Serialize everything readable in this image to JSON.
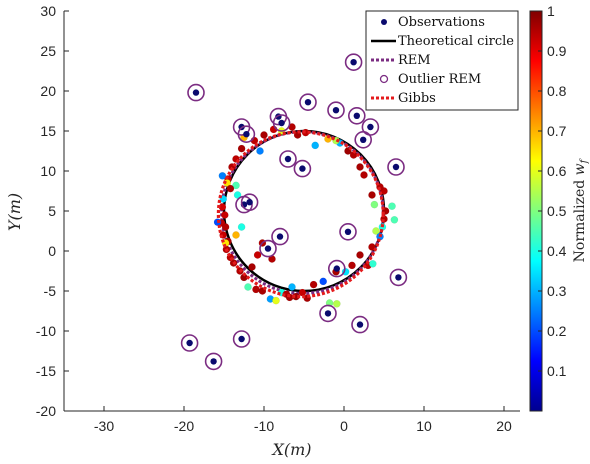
{
  "chart_data": {
    "type": "scatter",
    "title": "",
    "xlabel": "X(m)",
    "ylabel": "Y(m)",
    "xlim": [
      -35,
      22
    ],
    "ylim": [
      -20,
      30
    ],
    "xticks": [
      -30,
      -20,
      -10,
      0,
      10,
      20
    ],
    "yticks": [
      -20,
      -15,
      -10,
      -5,
      0,
      5,
      10,
      15,
      20,
      25,
      30
    ],
    "grid": false,
    "legend_position": "top-right",
    "legend": [
      "Observations",
      "Theoretical circle",
      "REM",
      "Outlier REM",
      "Gibbs"
    ],
    "colorbar": {
      "label": "Normalized w_f",
      "label_text": "Normalized ",
      "label_var": "w",
      "label_sub": "f",
      "range": [
        0,
        1
      ],
      "ticks": [
        "0.1",
        "0.2",
        "0.3",
        "0.4",
        "0.5",
        "0.6",
        "0.7",
        "0.8",
        "0.9",
        "1"
      ],
      "colormap": "jet"
    },
    "theoretical_circle": {
      "center": [
        -5,
        5
      ],
      "radius": 10,
      "color": "#000000"
    },
    "rem_circle": {
      "center": [
        -5.2,
        4.8
      ],
      "radius": 10.1,
      "color": "#7b2c82"
    },
    "gibbs_circle": {
      "center": [
        -5.4,
        4.6
      ],
      "radius": 10.3,
      "color": "#e41a1c"
    },
    "observations_on_circle": [
      {
        "x": -15.1,
        "y": 6.5,
        "w": 0.34
      },
      {
        "x": -15.2,
        "y": 5.5,
        "w": 0.92
      },
      {
        "x": -14.9,
        "y": 4.5,
        "w": 0.93
      },
      {
        "x": -15.3,
        "y": 3.5,
        "w": 0.94
      },
      {
        "x": -14.8,
        "y": 3.0,
        "w": 0.95
      },
      {
        "x": -15.1,
        "y": 2.0,
        "w": 0.93
      },
      {
        "x": -14.5,
        "y": 1.2,
        "w": 0.96
      },
      {
        "x": -14.7,
        "y": 0.2,
        "w": 0.95
      },
      {
        "x": -14.2,
        "y": -0.8,
        "w": 0.94
      },
      {
        "x": -13.8,
        "y": -1.5,
        "w": 0.96
      },
      {
        "x": -13.0,
        "y": -2.5,
        "w": 0.95
      },
      {
        "x": -12.5,
        "y": -3.3,
        "w": 0.97
      },
      {
        "x": -12.0,
        "y": -4.5,
        "w": 0.45
      },
      {
        "x": -11.0,
        "y": -4.8,
        "w": 0.95
      },
      {
        "x": -10.2,
        "y": -5.0,
        "w": 0.96
      },
      {
        "x": -9.2,
        "y": -6.0,
        "w": 0.28
      },
      {
        "x": -8.5,
        "y": -6.2,
        "w": 0.6
      },
      {
        "x": -7.8,
        "y": -5.2,
        "w": 0.4
      },
      {
        "x": -7.2,
        "y": -5.4,
        "w": 0.95
      },
      {
        "x": -6.8,
        "y": -5.8,
        "w": 0.96
      },
      {
        "x": -6.0,
        "y": -5.7,
        "w": 0.97
      },
      {
        "x": -5.2,
        "y": -5.2,
        "w": 0.93
      },
      {
        "x": -4.6,
        "y": -5.9,
        "w": 0.96
      },
      {
        "x": -3.8,
        "y": -4.2,
        "w": 0.95
      },
      {
        "x": -2.6,
        "y": -3.8,
        "w": 0.2
      },
      {
        "x": -1.8,
        "y": -6.5,
        "w": 0.5
      },
      {
        "x": -0.9,
        "y": -6.6,
        "w": 0.55
      },
      {
        "x": -1.0,
        "y": -2.6,
        "w": 0.96
      },
      {
        "x": 0.2,
        "y": -2.6,
        "w": 0.35
      },
      {
        "x": 1.0,
        "y": -1.8,
        "w": 0.95
      },
      {
        "x": 2.0,
        "y": -0.5,
        "w": 0.96
      },
      {
        "x": 3.0,
        "y": -1.8,
        "w": 0.94
      },
      {
        "x": 3.6,
        "y": -1.6,
        "w": 0.42
      },
      {
        "x": 3.5,
        "y": 0.5,
        "w": 0.95
      },
      {
        "x": 4.0,
        "y": 2.5,
        "w": 0.55
      },
      {
        "x": 4.5,
        "y": 1.8,
        "w": 0.25
      },
      {
        "x": 4.8,
        "y": 3.0,
        "w": 0.4
      },
      {
        "x": 5.0,
        "y": 4.0,
        "w": 0.95
      },
      {
        "x": 5.2,
        "y": 5.0,
        "w": 0.96
      },
      {
        "x": 5.0,
        "y": 7.5,
        "w": 0.94
      },
      {
        "x": 4.5,
        "y": 8.0,
        "w": 0.95
      },
      {
        "x": 6.0,
        "y": 5.6,
        "w": 0.45
      },
      {
        "x": 6.3,
        "y": 3.9,
        "w": 0.45
      },
      {
        "x": 3.8,
        "y": 5.8,
        "w": 0.5
      },
      {
        "x": 3.5,
        "y": 7.0,
        "w": 0.96
      },
      {
        "x": 2.5,
        "y": 9.5,
        "w": 0.95
      },
      {
        "x": 2.0,
        "y": 10.5,
        "w": 0.96
      },
      {
        "x": 1.2,
        "y": 12.0,
        "w": 0.95
      },
      {
        "x": 0.5,
        "y": 12.5,
        "w": 0.97
      },
      {
        "x": -0.5,
        "y": 13.5,
        "w": 0.3
      },
      {
        "x": -1.0,
        "y": 13.8,
        "w": 0.55
      },
      {
        "x": -2.0,
        "y": 14.0,
        "w": 0.7
      },
      {
        "x": -3.6,
        "y": 13.2,
        "w": 0.3
      },
      {
        "x": -4.8,
        "y": 14.8,
        "w": 0.94
      },
      {
        "x": -5.8,
        "y": 14.5,
        "w": 0.96
      },
      {
        "x": -6.5,
        "y": 15.5,
        "w": 0.95
      },
      {
        "x": -7.8,
        "y": 15.0,
        "w": 0.6
      },
      {
        "x": -8.8,
        "y": 15.2,
        "w": 0.93
      },
      {
        "x": -10.0,
        "y": 14.5,
        "w": 0.96
      },
      {
        "x": -10.5,
        "y": 12.5,
        "w": 0.25
      },
      {
        "x": -11.2,
        "y": 13.8,
        "w": 0.94
      },
      {
        "x": -12.5,
        "y": 14.2,
        "w": 0.7
      },
      {
        "x": -12.8,
        "y": 12.8,
        "w": 0.96
      },
      {
        "x": -13.5,
        "y": 11.5,
        "w": 0.94
      },
      {
        "x": -14.0,
        "y": 10.5,
        "w": 0.95
      },
      {
        "x": -14.5,
        "y": 9.0,
        "w": 0.93
      },
      {
        "x": -15.2,
        "y": 9.4,
        "w": 0.25
      },
      {
        "x": -14.6,
        "y": 8.5,
        "w": 0.65
      },
      {
        "x": -13.5,
        "y": 8.2,
        "w": 0.45
      },
      {
        "x": -14.2,
        "y": 7.8,
        "w": 0.96
      },
      {
        "x": -13.3,
        "y": 7.0,
        "w": 0.4
      },
      {
        "x": -15.8,
        "y": 3.6,
        "w": 0.2
      },
      {
        "x": -12.8,
        "y": 3.0,
        "w": 0.4
      },
      {
        "x": -14.8,
        "y": 1.0,
        "w": 0.65
      },
      {
        "x": -13.5,
        "y": 2.0,
        "w": 0.7
      },
      {
        "x": -11.5,
        "y": -2.0,
        "w": 0.96
      },
      {
        "x": -9.0,
        "y": -1.0,
        "w": 0.95
      },
      {
        "x": -6.5,
        "y": -4.5,
        "w": 0.3
      },
      {
        "x": -10.2,
        "y": 1.0,
        "w": 0.95
      },
      {
        "x": -10.8,
        "y": -0.5,
        "w": 0.93
      }
    ],
    "outliers": [
      {
        "x": -18.5,
        "y": 19.8
      },
      {
        "x": -12.8,
        "y": 15.5
      },
      {
        "x": -12.2,
        "y": 14.6
      },
      {
        "x": -8.2,
        "y": 16.8
      },
      {
        "x": -7.8,
        "y": 16.0
      },
      {
        "x": -4.5,
        "y": 18.6
      },
      {
        "x": -1.0,
        "y": 17.6
      },
      {
        "x": 1.2,
        "y": 23.6
      },
      {
        "x": 1.6,
        "y": 16.9
      },
      {
        "x": 2.4,
        "y": 13.9
      },
      {
        "x": 3.3,
        "y": 15.5
      },
      {
        "x": -7.0,
        "y": 11.5
      },
      {
        "x": -5.2,
        "y": 10.3
      },
      {
        "x": 6.5,
        "y": 10.5
      },
      {
        "x": -12.5,
        "y": 5.8
      },
      {
        "x": -11.8,
        "y": 6.1
      },
      {
        "x": -9.5,
        "y": 0.3
      },
      {
        "x": -8.0,
        "y": 1.8
      },
      {
        "x": 0.5,
        "y": 2.4
      },
      {
        "x": -0.9,
        "y": -2.2
      },
      {
        "x": 6.8,
        "y": -3.3
      },
      {
        "x": -2.0,
        "y": -7.8
      },
      {
        "x": 2.0,
        "y": -9.2
      },
      {
        "x": -12.8,
        "y": -11.0
      },
      {
        "x": -19.3,
        "y": -11.5
      },
      {
        "x": -16.3,
        "y": -13.8
      }
    ]
  }
}
